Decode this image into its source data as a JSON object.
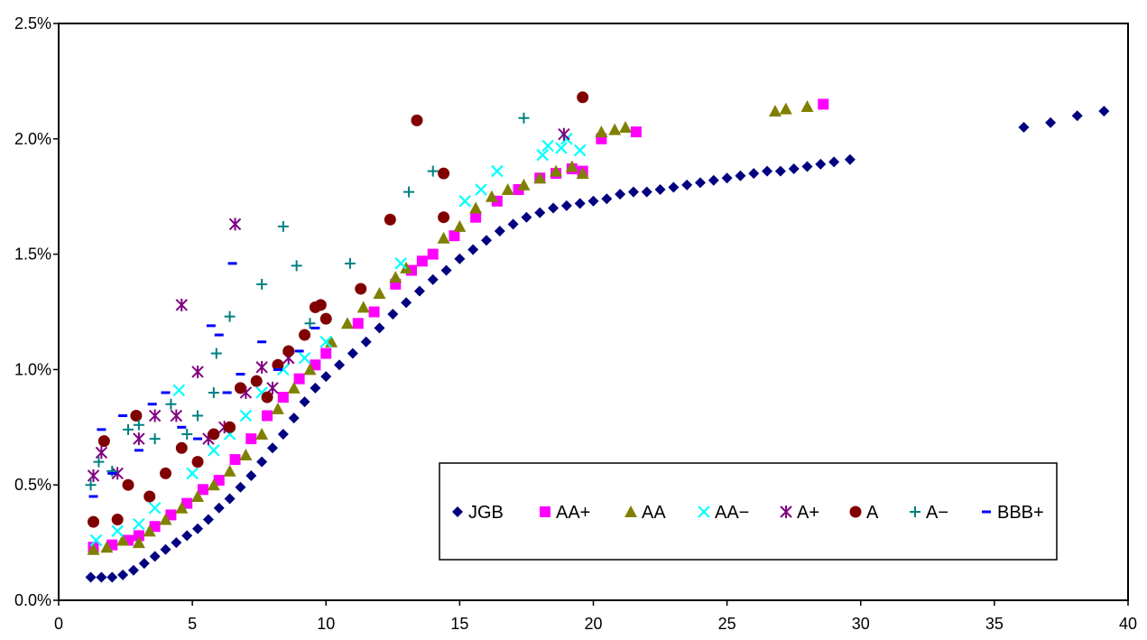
{
  "chart_data": {
    "type": "scatter",
    "title": "",
    "xlabel": "",
    "ylabel": "",
    "xlim": [
      0,
      40
    ],
    "ylim": [
      0,
      2.5
    ],
    "x_ticks": [
      "0",
      "5",
      "10",
      "15",
      "20",
      "25",
      "30",
      "35",
      "40"
    ],
    "y_ticks": [
      "0.0%",
      "0.5%",
      "1.0%",
      "1.5%",
      "2.0%",
      "2.5%"
    ],
    "grid": false,
    "legend_position": "bottom-right",
    "series": [
      {
        "name": "JGB",
        "marker": "diamond",
        "color": "#000080",
        "points": [
          [
            1.2,
            0.1
          ],
          [
            1.6,
            0.1
          ],
          [
            2.0,
            0.1
          ],
          [
            2.4,
            0.11
          ],
          [
            2.8,
            0.13
          ],
          [
            3.2,
            0.16
          ],
          [
            3.6,
            0.19
          ],
          [
            4.0,
            0.22
          ],
          [
            4.4,
            0.25
          ],
          [
            4.8,
            0.28
          ],
          [
            5.2,
            0.31
          ],
          [
            5.6,
            0.35
          ],
          [
            6.0,
            0.4
          ],
          [
            6.4,
            0.44
          ],
          [
            6.8,
            0.49
          ],
          [
            7.2,
            0.54
          ],
          [
            7.6,
            0.6
          ],
          [
            8.0,
            0.66
          ],
          [
            8.4,
            0.72
          ],
          [
            8.8,
            0.79
          ],
          [
            9.2,
            0.86
          ],
          [
            9.6,
            0.92
          ],
          [
            10.0,
            0.97
          ],
          [
            10.5,
            1.02
          ],
          [
            11.0,
            1.07
          ],
          [
            11.5,
            1.12
          ],
          [
            12.0,
            1.18
          ],
          [
            12.5,
            1.24
          ],
          [
            13.0,
            1.29
          ],
          [
            13.5,
            1.34
          ],
          [
            14.0,
            1.39
          ],
          [
            14.5,
            1.43
          ],
          [
            15.0,
            1.48
          ],
          [
            15.5,
            1.52
          ],
          [
            16.0,
            1.56
          ],
          [
            16.5,
            1.6
          ],
          [
            17.0,
            1.63
          ],
          [
            17.5,
            1.66
          ],
          [
            18.0,
            1.68
          ],
          [
            18.5,
            1.7
          ],
          [
            19.0,
            1.71
          ],
          [
            19.5,
            1.72
          ],
          [
            20.0,
            1.73
          ],
          [
            20.5,
            1.74
          ],
          [
            21.0,
            1.76
          ],
          [
            21.5,
            1.77
          ],
          [
            22.0,
            1.77
          ],
          [
            22.5,
            1.78
          ],
          [
            23.0,
            1.79
          ],
          [
            23.5,
            1.8
          ],
          [
            24.0,
            1.81
          ],
          [
            24.5,
            1.82
          ],
          [
            25.0,
            1.83
          ],
          [
            25.5,
            1.84
          ],
          [
            26.0,
            1.85
          ],
          [
            26.5,
            1.86
          ],
          [
            27.0,
            1.86
          ],
          [
            27.5,
            1.87
          ],
          [
            28.0,
            1.88
          ],
          [
            28.5,
            1.89
          ],
          [
            29.0,
            1.9
          ],
          [
            29.6,
            1.91
          ],
          [
            36.1,
            2.05
          ],
          [
            37.1,
            2.07
          ],
          [
            38.1,
            2.1
          ],
          [
            39.1,
            2.12
          ]
        ]
      },
      {
        "name": "AA+",
        "marker": "square",
        "color": "#FF00FF",
        "points": [
          [
            1.3,
            0.23
          ],
          [
            2.0,
            0.24
          ],
          [
            2.6,
            0.26
          ],
          [
            3.0,
            0.28
          ],
          [
            3.6,
            0.32
          ],
          [
            4.2,
            0.37
          ],
          [
            4.8,
            0.42
          ],
          [
            5.4,
            0.48
          ],
          [
            6.0,
            0.52
          ],
          [
            6.6,
            0.61
          ],
          [
            7.2,
            0.7
          ],
          [
            7.8,
            0.8
          ],
          [
            8.4,
            0.88
          ],
          [
            9.0,
            0.96
          ],
          [
            9.6,
            1.02
          ],
          [
            10.0,
            1.07
          ],
          [
            11.2,
            1.2
          ],
          [
            11.8,
            1.25
          ],
          [
            12.6,
            1.37
          ],
          [
            13.2,
            1.43
          ],
          [
            13.6,
            1.47
          ],
          [
            14.0,
            1.5
          ],
          [
            14.8,
            1.58
          ],
          [
            15.6,
            1.66
          ],
          [
            16.4,
            1.73
          ],
          [
            17.2,
            1.78
          ],
          [
            18.0,
            1.83
          ],
          [
            18.6,
            1.85
          ],
          [
            19.2,
            1.87
          ],
          [
            19.6,
            1.86
          ],
          [
            20.3,
            2.0
          ],
          [
            21.6,
            2.03
          ],
          [
            28.6,
            2.15
          ]
        ]
      },
      {
        "name": "AA",
        "marker": "triangle",
        "color": "#808000",
        "points": [
          [
            1.3,
            0.22
          ],
          [
            1.8,
            0.23
          ],
          [
            2.4,
            0.26
          ],
          [
            3.0,
            0.25
          ],
          [
            3.4,
            0.3
          ],
          [
            4.0,
            0.35
          ],
          [
            4.6,
            0.4
          ],
          [
            5.2,
            0.45
          ],
          [
            5.8,
            0.5
          ],
          [
            6.4,
            0.56
          ],
          [
            7.0,
            0.63
          ],
          [
            7.6,
            0.72
          ],
          [
            8.2,
            0.83
          ],
          [
            8.8,
            0.92
          ],
          [
            9.4,
            1.0
          ],
          [
            10.2,
            1.12
          ],
          [
            10.8,
            1.2
          ],
          [
            11.4,
            1.27
          ],
          [
            12.0,
            1.33
          ],
          [
            12.6,
            1.4
          ],
          [
            13.0,
            1.44
          ],
          [
            14.4,
            1.57
          ],
          [
            15.0,
            1.62
          ],
          [
            15.6,
            1.7
          ],
          [
            16.2,
            1.75
          ],
          [
            16.8,
            1.78
          ],
          [
            17.4,
            1.8
          ],
          [
            18.0,
            1.83
          ],
          [
            18.6,
            1.86
          ],
          [
            19.2,
            1.88
          ],
          [
            19.6,
            1.85
          ],
          [
            20.3,
            2.03
          ],
          [
            20.8,
            2.04
          ],
          [
            21.2,
            2.05
          ],
          [
            26.8,
            2.12
          ],
          [
            27.2,
            2.13
          ],
          [
            28.0,
            2.14
          ]
        ]
      },
      {
        "name": "AA−",
        "marker": "x",
        "color": "#00FFFF",
        "points": [
          [
            1.4,
            0.26
          ],
          [
            2.2,
            0.3
          ],
          [
            3.0,
            0.33
          ],
          [
            3.6,
            0.4
          ],
          [
            4.5,
            0.91
          ],
          [
            5.0,
            0.55
          ],
          [
            5.8,
            0.65
          ],
          [
            6.4,
            0.72
          ],
          [
            7.0,
            0.8
          ],
          [
            7.6,
            0.9
          ],
          [
            8.4,
            1.0
          ],
          [
            9.2,
            1.05
          ],
          [
            10.0,
            1.12
          ],
          [
            12.8,
            1.46
          ],
          [
            15.2,
            1.73
          ],
          [
            15.8,
            1.78
          ],
          [
            16.4,
            1.86
          ],
          [
            18.1,
            1.93
          ],
          [
            18.3,
            1.97
          ],
          [
            18.8,
            1.96
          ],
          [
            19.0,
            2.0
          ],
          [
            19.5,
            1.95
          ]
        ]
      },
      {
        "name": "A+",
        "marker": "star",
        "color": "#800080",
        "points": [
          [
            1.3,
            0.54
          ],
          [
            1.6,
            0.64
          ],
          [
            2.2,
            0.55
          ],
          [
            3.0,
            0.7
          ],
          [
            3.6,
            0.8
          ],
          [
            4.4,
            0.8
          ],
          [
            4.6,
            1.28
          ],
          [
            5.2,
            0.99
          ],
          [
            5.6,
            0.7
          ],
          [
            6.2,
            0.75
          ],
          [
            6.6,
            1.63
          ],
          [
            7.0,
            0.9
          ],
          [
            7.6,
            1.01
          ],
          [
            8.0,
            0.92
          ],
          [
            8.6,
            1.05
          ],
          [
            18.9,
            2.02
          ]
        ]
      },
      {
        "name": "A",
        "marker": "circle",
        "color": "#800000",
        "points": [
          [
            1.3,
            0.34
          ],
          [
            1.7,
            0.69
          ],
          [
            2.2,
            0.35
          ],
          [
            2.6,
            0.5
          ],
          [
            2.9,
            0.8
          ],
          [
            3.4,
            0.45
          ],
          [
            4.0,
            0.55
          ],
          [
            4.6,
            0.66
          ],
          [
            5.2,
            0.6
          ],
          [
            5.8,
            0.72
          ],
          [
            6.4,
            0.75
          ],
          [
            6.8,
            0.92
          ],
          [
            7.4,
            0.95
          ],
          [
            7.8,
            0.88
          ],
          [
            8.2,
            1.02
          ],
          [
            8.6,
            1.08
          ],
          [
            9.2,
            1.15
          ],
          [
            9.6,
            1.27
          ],
          [
            9.8,
            1.28
          ],
          [
            10.0,
            1.22
          ],
          [
            11.3,
            1.35
          ],
          [
            12.4,
            1.65
          ],
          [
            13.4,
            2.08
          ],
          [
            14.4,
            1.66
          ],
          [
            14.4,
            1.85
          ],
          [
            19.6,
            2.18
          ]
        ]
      },
      {
        "name": "A−",
        "marker": "plus",
        "color": "#008080",
        "points": [
          [
            1.2,
            0.5
          ],
          [
            1.5,
            0.6
          ],
          [
            2.0,
            0.56
          ],
          [
            2.6,
            0.74
          ],
          [
            3.0,
            0.76
          ],
          [
            3.6,
            0.7
          ],
          [
            4.2,
            0.85
          ],
          [
            4.8,
            0.72
          ],
          [
            5.2,
            0.8
          ],
          [
            5.8,
            0.9
          ],
          [
            5.9,
            1.07
          ],
          [
            6.4,
            1.23
          ],
          [
            7.6,
            1.37
          ],
          [
            8.4,
            1.62
          ],
          [
            8.9,
            1.45
          ],
          [
            9.4,
            1.2
          ],
          [
            10.9,
            1.46
          ],
          [
            13.1,
            1.77
          ],
          [
            14.0,
            1.86
          ],
          [
            17.4,
            2.09
          ]
        ]
      },
      {
        "name": "BBB+",
        "marker": "dash",
        "color": "#0000FF",
        "points": [
          [
            1.3,
            0.45
          ],
          [
            1.6,
            0.74
          ],
          [
            2.0,
            0.55
          ],
          [
            2.4,
            0.8
          ],
          [
            3.0,
            0.65
          ],
          [
            3.5,
            0.85
          ],
          [
            4.0,
            0.9
          ],
          [
            4.6,
            0.75
          ],
          [
            5.2,
            0.7
          ],
          [
            5.7,
            1.19
          ],
          [
            6.0,
            1.15
          ],
          [
            6.3,
            0.9
          ],
          [
            6.5,
            1.46
          ],
          [
            6.8,
            0.98
          ],
          [
            7.6,
            1.12
          ],
          [
            8.2,
            1.0
          ],
          [
            9.0,
            1.08
          ],
          [
            9.6,
            1.18
          ]
        ]
      }
    ]
  }
}
